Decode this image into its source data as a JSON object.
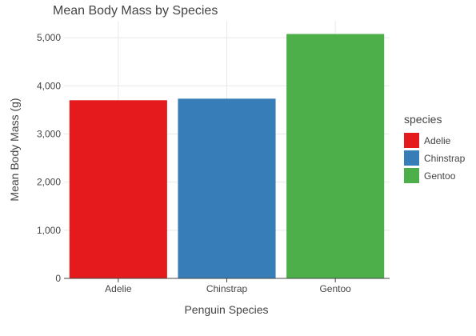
{
  "chart_data": {
    "type": "bar",
    "title": "Mean Body Mass by Species",
    "xlabel": "Penguin Species",
    "ylabel": "Mean Body Mass (g)",
    "categories": [
      "Adelie",
      "Chinstrap",
      "Gentoo"
    ],
    "values": [
      3700,
      3733,
      5076
    ],
    "colors": [
      "#e41a1c",
      "#377eb8",
      "#4daf4a"
    ],
    "ylim": [
      0,
      5350
    ],
    "yticks": [
      0,
      1000,
      2000,
      3000,
      4000,
      5000
    ],
    "ytick_labels": [
      "0",
      "1,000",
      "2,000",
      "3,000",
      "4,000",
      "5,000"
    ],
    "grid": true,
    "legend": {
      "title": "species",
      "placement": "right",
      "entries": [
        "Adelie",
        "Chinstrap",
        "Gentoo"
      ]
    }
  }
}
